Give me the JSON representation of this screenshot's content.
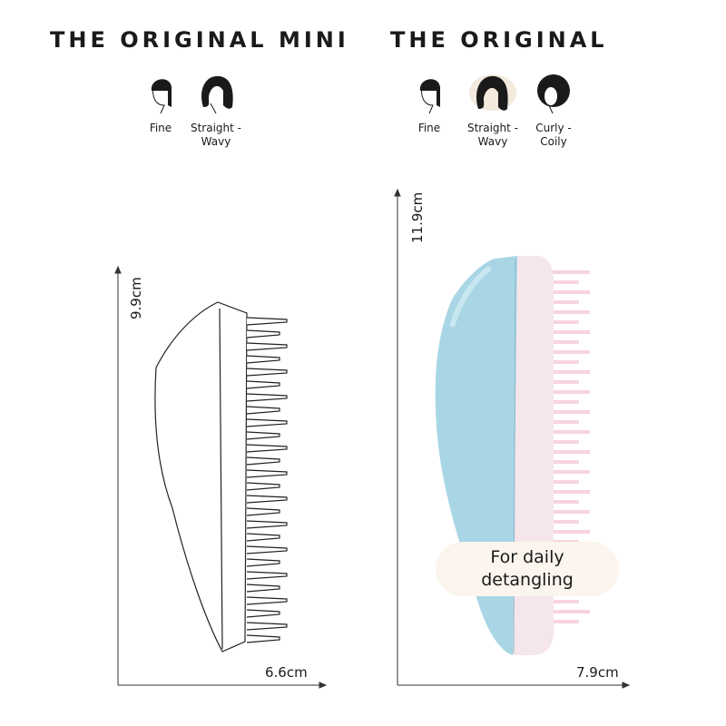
{
  "mini": {
    "title": "THE ORIGINAL MINI",
    "hair_types": [
      {
        "label": "Fine"
      },
      {
        "label": "Straight -\nWavy"
      }
    ],
    "height": "9.9cm",
    "width": "6.6cm"
  },
  "original": {
    "title": "THE ORIGINAL",
    "hair_types": [
      {
        "label": "Fine"
      },
      {
        "label": "Straight -\nWavy"
      },
      {
        "label": "Curly -\nCoily"
      }
    ],
    "height": "11.9cm",
    "width": "7.9cm",
    "badge": "For daily detangling",
    "colors": {
      "body": "#a9d6e5",
      "face": "#f5e6ec",
      "bristles": "#f7d4df",
      "badge_bg": "#fbf5ee",
      "highlight": "#f3e9dd"
    }
  }
}
